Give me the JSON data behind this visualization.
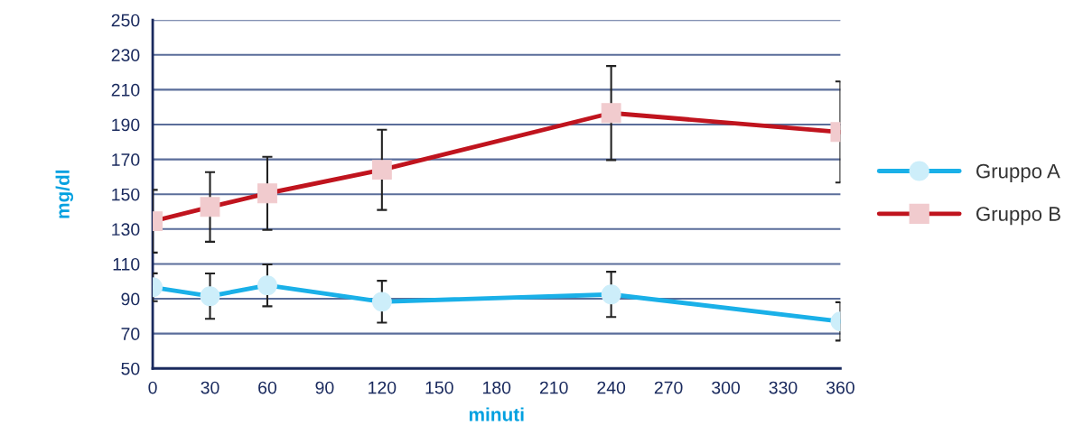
{
  "chart_data": {
    "type": "line",
    "xlabel": "minuti",
    "ylabel": "mg/dl",
    "x": [
      0,
      30,
      60,
      120,
      240,
      360
    ],
    "xlim": [
      0,
      360
    ],
    "xticks": [
      0,
      30,
      60,
      90,
      120,
      150,
      180,
      210,
      240,
      270,
      300,
      330,
      360
    ],
    "ylim": [
      50,
      250
    ],
    "yticks": [
      50,
      70,
      90,
      110,
      130,
      150,
      170,
      190,
      210,
      230,
      250
    ],
    "grid": "y",
    "legend": "right",
    "line_style": "solid",
    "series": [
      {
        "name": "Gruppo A",
        "color": "#1ab0e8",
        "marker": "circle",
        "values": [
          96.6,
          91.5,
          97.7,
          88.3,
          92.5,
          77
        ],
        "errors": [
          8,
          13,
          12,
          12,
          13,
          11
        ]
      },
      {
        "name": "Gruppo B",
        "color": "#c0141e",
        "marker": "square",
        "values": [
          134.5,
          142.7,
          150.5,
          164,
          196.6,
          185.7
        ],
        "errors": [
          18,
          20,
          21,
          23,
          27,
          29
        ]
      }
    ]
  }
}
